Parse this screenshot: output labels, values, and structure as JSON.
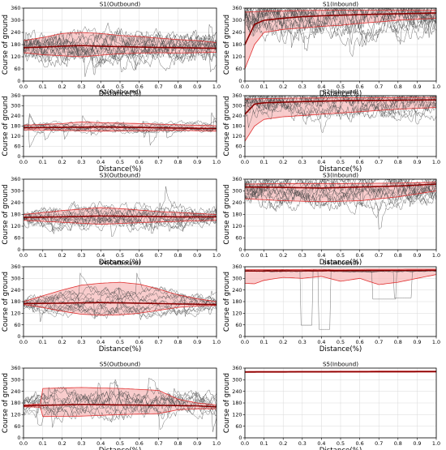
{
  "figure": {
    "ylabel": "Course of ground",
    "xlabel": "Distance(%)",
    "colors": {
      "trajectory": "#444444",
      "median": "#8b0000",
      "band_fill": "#f6b8b8",
      "band_edge": "#e03030",
      "grid": "#d9d9d9"
    }
  },
  "chart_data": [
    {
      "id": "s1-out",
      "type": "line",
      "title": "S1(Outbound)",
      "xlim": [
        0,
        1
      ],
      "ylim": [
        0,
        360
      ],
      "xticks": [
        "0.0",
        "0.1",
        "0.2",
        "0.3",
        "0.4",
        "0.5",
        "0.6",
        "0.7",
        "0.8",
        "0.9",
        "1.0"
      ],
      "yticks": [
        "0",
        "60",
        "120",
        "180",
        "240",
        "300",
        "360"
      ],
      "median": [
        [
          0,
          165
        ],
        [
          0.1,
          168
        ],
        [
          0.2,
          172
        ],
        [
          0.3,
          175
        ],
        [
          0.4,
          172
        ],
        [
          0.5,
          170
        ],
        [
          0.6,
          168
        ],
        [
          0.7,
          166
        ],
        [
          0.8,
          165
        ],
        [
          0.9,
          163
        ],
        [
          1.0,
          162
        ]
      ],
      "band_upper": [
        [
          0,
          200
        ],
        [
          0.1,
          215
        ],
        [
          0.2,
          235
        ],
        [
          0.3,
          240
        ],
        [
          0.4,
          235
        ],
        [
          0.5,
          225
        ],
        [
          0.6,
          220
        ],
        [
          0.7,
          212
        ],
        [
          0.8,
          205
        ],
        [
          0.9,
          200
        ],
        [
          1.0,
          190
        ]
      ],
      "band_lower": [
        [
          0,
          140
        ],
        [
          0.1,
          130
        ],
        [
          0.2,
          125
        ],
        [
          0.3,
          120
        ],
        [
          0.4,
          128
        ],
        [
          0.5,
          135
        ],
        [
          0.6,
          138
        ],
        [
          0.7,
          140
        ],
        [
          0.8,
          138
        ],
        [
          0.9,
          140
        ],
        [
          1.0,
          142
        ]
      ],
      "traj": {
        "n": 14,
        "base": 165,
        "spread": 140,
        "noise": 55,
        "seed": 11
      }
    },
    {
      "id": "s1-in",
      "type": "line",
      "title": "S1(Inbound)",
      "xlim": [
        0,
        1
      ],
      "ylim": [
        0,
        360
      ],
      "xticks": [
        "0.0",
        "0.1",
        "0.2",
        "0.3",
        "0.4",
        "0.5",
        "0.6",
        "0.7",
        "0.8",
        "0.9",
        "1.0"
      ],
      "yticks": [
        "0",
        "60",
        "120",
        "180",
        "240",
        "300",
        "360"
      ],
      "median": [
        [
          0,
          180
        ],
        [
          0.05,
          280
        ],
        [
          0.1,
          300
        ],
        [
          0.2,
          310
        ],
        [
          0.3,
          318
        ],
        [
          0.4,
          322
        ],
        [
          0.5,
          325
        ],
        [
          0.6,
          328
        ],
        [
          0.7,
          330
        ],
        [
          0.8,
          332
        ],
        [
          0.9,
          334
        ],
        [
          1.0,
          336
        ]
      ],
      "band_upper": [
        [
          0,
          340
        ],
        [
          0.1,
          345
        ],
        [
          0.3,
          348
        ],
        [
          0.5,
          350
        ],
        [
          0.7,
          350
        ],
        [
          1.0,
          350
        ]
      ],
      "band_lower": [
        [
          0,
          60
        ],
        [
          0.05,
          180
        ],
        [
          0.1,
          240
        ],
        [
          0.2,
          255
        ],
        [
          0.3,
          262
        ],
        [
          0.4,
          270
        ],
        [
          0.5,
          275
        ],
        [
          0.6,
          285
        ],
        [
          0.7,
          292
        ],
        [
          0.8,
          300
        ],
        [
          0.9,
          305
        ],
        [
          1.0,
          310
        ]
      ],
      "traj": {
        "n": 16,
        "base": 320,
        "spread": 200,
        "noise": 70,
        "seed": 23
      }
    },
    {
      "id": "s2-out",
      "type": "line",
      "title": "S2(Outbound)",
      "xlim": [
        0,
        1
      ],
      "ylim": [
        0,
        360
      ],
      "xticks": [
        "0.0",
        "0.1",
        "0.2",
        "0.3",
        "0.4",
        "0.5",
        "0.6",
        "0.7",
        "0.8",
        "0.9",
        "1.0"
      ],
      "yticks": [
        "0",
        "60",
        "120",
        "180",
        "240",
        "300",
        "360"
      ],
      "median": [
        [
          0,
          170
        ],
        [
          0.2,
          172
        ],
        [
          0.4,
          175
        ],
        [
          0.6,
          172
        ],
        [
          0.8,
          168
        ],
        [
          1.0,
          165
        ]
      ],
      "band_upper": [
        [
          0,
          185
        ],
        [
          0.2,
          195
        ],
        [
          0.3,
          205
        ],
        [
          0.4,
          200
        ],
        [
          0.6,
          195
        ],
        [
          0.8,
          188
        ],
        [
          1.0,
          182
        ]
      ],
      "band_lower": [
        [
          0,
          158
        ],
        [
          0.2,
          155
        ],
        [
          0.4,
          150
        ],
        [
          0.6,
          152
        ],
        [
          0.8,
          155
        ],
        [
          1.0,
          150
        ]
      ],
      "traj": {
        "n": 10,
        "base": 170,
        "spread": 40,
        "noise": 22,
        "seed": 37
      }
    },
    {
      "id": "s2-in",
      "type": "line",
      "title": "S2(Inbound)",
      "xlim": [
        0,
        1
      ],
      "ylim": [
        0,
        360
      ],
      "xticks": [
        "0.0",
        "0.1",
        "0.2",
        "0.3",
        "0.4",
        "0.5",
        "0.6",
        "0.7",
        "0.8",
        "0.9",
        "1.0"
      ],
      "yticks": [
        "0",
        "60",
        "120",
        "180",
        "240",
        "300",
        "360"
      ],
      "median": [
        [
          0,
          250
        ],
        [
          0.05,
          310
        ],
        [
          0.1,
          318
        ],
        [
          0.3,
          325
        ],
        [
          0.5,
          330
        ],
        [
          0.7,
          332
        ],
        [
          1.0,
          335
        ]
      ],
      "band_upper": [
        [
          0,
          340
        ],
        [
          0.2,
          345
        ],
        [
          0.5,
          348
        ],
        [
          1.0,
          350
        ]
      ],
      "band_lower": [
        [
          0,
          90
        ],
        [
          0.05,
          180
        ],
        [
          0.1,
          220
        ],
        [
          0.2,
          235
        ],
        [
          0.4,
          250
        ],
        [
          0.6,
          265
        ],
        [
          0.8,
          280
        ],
        [
          1.0,
          290
        ]
      ],
      "traj": {
        "n": 14,
        "base": 320,
        "spread": 190,
        "noise": 60,
        "seed": 41
      }
    },
    {
      "id": "s3-out",
      "type": "line",
      "title": "S3(Outbound)",
      "xlim": [
        0,
        1
      ],
      "ylim": [
        0,
        360
      ],
      "xticks": [
        "0.0",
        "0.1",
        "0.2",
        "0.3",
        "0.4",
        "0.5",
        "0.6",
        "0.7",
        "0.8",
        "0.9",
        "1.0"
      ],
      "yticks": [
        "0",
        "60",
        "120",
        "180",
        "240",
        "300",
        "360"
      ],
      "median": [
        [
          0,
          165
        ],
        [
          0.2,
          168
        ],
        [
          0.4,
          172
        ],
        [
          0.6,
          170
        ],
        [
          0.8,
          168
        ],
        [
          1.0,
          168
        ]
      ],
      "band_upper": [
        [
          0,
          180
        ],
        [
          0.2,
          200
        ],
        [
          0.4,
          215
        ],
        [
          0.5,
          210
        ],
        [
          0.7,
          195
        ],
        [
          0.9,
          185
        ],
        [
          1.0,
          180
        ]
      ],
      "band_lower": [
        [
          0,
          150
        ],
        [
          0.2,
          140
        ],
        [
          0.4,
          130
        ],
        [
          0.6,
          138
        ],
        [
          0.8,
          145
        ],
        [
          1.0,
          150
        ]
      ],
      "traj": {
        "n": 12,
        "base": 168,
        "spread": 90,
        "noise": 40,
        "seed": 53
      }
    },
    {
      "id": "s3-in",
      "type": "line",
      "title": "S3(Inbound)",
      "xlim": [
        0,
        1
      ],
      "ylim": [
        0,
        360
      ],
      "xticks": [
        "0.0",
        "0.1",
        "0.2",
        "0.3",
        "0.4",
        "0.5",
        "0.6",
        "0.7",
        "0.8",
        "0.9",
        "1.0"
      ],
      "yticks": [
        "0",
        "60",
        "120",
        "180",
        "240",
        "300",
        "360"
      ],
      "median": [
        [
          0,
          320
        ],
        [
          0.2,
          318
        ],
        [
          0.4,
          315
        ],
        [
          0.6,
          320
        ],
        [
          0.8,
          325
        ],
        [
          1.0,
          335
        ]
      ],
      "band_upper": [
        [
          0,
          335
        ],
        [
          0.2,
          338
        ],
        [
          0.5,
          338
        ],
        [
          0.8,
          340
        ],
        [
          1.0,
          345
        ]
      ],
      "band_lower": [
        [
          0,
          260
        ],
        [
          0.2,
          250
        ],
        [
          0.4,
          245
        ],
        [
          0.6,
          250
        ],
        [
          0.8,
          270
        ],
        [
          1.0,
          300
        ]
      ],
      "traj": {
        "n": 14,
        "base": 310,
        "spread": 170,
        "noise": 55,
        "seed": 67
      }
    },
    {
      "id": "s4-out",
      "type": "line",
      "title": "S4(Outbound)",
      "xlim": [
        0,
        1
      ],
      "ylim": [
        0,
        360
      ],
      "xticks": [
        "0.0",
        "0.1",
        "0.2",
        "0.3",
        "0.4",
        "0.5",
        "0.6",
        "0.7",
        "0.8",
        "0.9",
        "1.0"
      ],
      "yticks": [
        "0",
        "60",
        "120",
        "180",
        "240",
        "300",
        "360"
      ],
      "median": [
        [
          0,
          170
        ],
        [
          0.2,
          172
        ],
        [
          0.4,
          175
        ],
        [
          0.6,
          172
        ],
        [
          0.8,
          168
        ],
        [
          1.0,
          165
        ]
      ],
      "band_upper": [
        [
          0,
          180
        ],
        [
          0.1,
          210
        ],
        [
          0.2,
          240
        ],
        [
          0.3,
          265
        ],
        [
          0.4,
          275
        ],
        [
          0.5,
          280
        ],
        [
          0.6,
          270
        ],
        [
          0.7,
          245
        ],
        [
          0.8,
          215
        ],
        [
          0.9,
          195
        ],
        [
          1.0,
          180
        ]
      ],
      "band_lower": [
        [
          0,
          165
        ],
        [
          0.1,
          150
        ],
        [
          0.2,
          130
        ],
        [
          0.3,
          115
        ],
        [
          0.4,
          110
        ],
        [
          0.5,
          112
        ],
        [
          0.6,
          120
        ],
        [
          0.7,
          135
        ],
        [
          0.8,
          150
        ],
        [
          0.9,
          158
        ],
        [
          1.0,
          160
        ]
      ],
      "traj": {
        "n": 12,
        "base": 172,
        "spread": 160,
        "noise": 30,
        "seed": 79
      }
    },
    {
      "id": "s4-in",
      "type": "line",
      "title": "S4(Inbound)",
      "xlim": [
        0,
        1
      ],
      "ylim": [
        0,
        360
      ],
      "xticks": [
        "0.0",
        "0.1",
        "0.2",
        "0.3",
        "0.4",
        "0.5",
        "0.6",
        "0.7",
        "0.8",
        "0.9",
        "1.0"
      ],
      "yticks": [
        "0",
        "60",
        "120",
        "180",
        "240",
        "300",
        "360"
      ],
      "median": [
        [
          0,
          338
        ],
        [
          0.5,
          340
        ],
        [
          1.0,
          342
        ]
      ],
      "band_upper": [
        [
          0,
          345
        ],
        [
          0.5,
          347
        ],
        [
          1.0,
          348
        ]
      ],
      "band_lower": [
        [
          0,
          275
        ],
        [
          0.05,
          272
        ],
        [
          0.1,
          290
        ],
        [
          0.2,
          305
        ],
        [
          0.3,
          300
        ],
        [
          0.4,
          310
        ],
        [
          0.5,
          285
        ],
        [
          0.6,
          300
        ],
        [
          0.7,
          268
        ],
        [
          0.8,
          280
        ],
        [
          0.9,
          300
        ],
        [
          1.0,
          320
        ]
      ],
      "traj": {
        "n": 6,
        "base": 340,
        "spread": 10,
        "noise": 4,
        "seed": 83,
        "dips": true
      }
    },
    {
      "id": "s5-out",
      "type": "line",
      "title": "S5(Outbound)",
      "xlim": [
        0,
        1
      ],
      "ylim": [
        0,
        360
      ],
      "xticks": [
        "0.0",
        "0.1",
        "0.2",
        "0.3",
        "0.4",
        "0.5",
        "0.6",
        "0.7",
        "0.8",
        "0.9",
        "1.0"
      ],
      "yticks": [
        "0",
        "60",
        "120",
        "180",
        "240",
        "300",
        "360"
      ],
      "median": [
        [
          0,
          165
        ],
        [
          0.1,
          168
        ],
        [
          0.3,
          172
        ],
        [
          0.5,
          170
        ],
        [
          0.7,
          168
        ],
        [
          0.9,
          165
        ],
        [
          1.0,
          160
        ]
      ],
      "band_upper": [
        [
          0,
          170
        ],
        [
          0.09,
          175
        ],
        [
          0.1,
          255
        ],
        [
          0.3,
          260
        ],
        [
          0.5,
          255
        ],
        [
          0.7,
          245
        ],
        [
          0.8,
          200
        ],
        [
          0.9,
          180
        ],
        [
          1.0,
          170
        ]
      ],
      "band_lower": [
        [
          0,
          160
        ],
        [
          0.09,
          158
        ],
        [
          0.1,
          110
        ],
        [
          0.3,
          112
        ],
        [
          0.5,
          120
        ],
        [
          0.7,
          125
        ],
        [
          0.8,
          145
        ],
        [
          0.9,
          150
        ],
        [
          1.0,
          150
        ]
      ],
      "traj": {
        "n": 10,
        "base": 168,
        "spread": 150,
        "noise": 45,
        "seed": 97
      }
    },
    {
      "id": "s5-in",
      "type": "line",
      "title": "S5(Inbound)",
      "xlim": [
        0,
        1
      ],
      "ylim": [
        0,
        360
      ],
      "xticks": [
        "0.0",
        "0.1",
        "0.2",
        "0.3",
        "0.4",
        "0.5",
        "0.6",
        "0.7",
        "0.8",
        "0.9",
        "1.0"
      ],
      "yticks": [
        "0",
        "60",
        "120",
        "180",
        "240",
        "300",
        "360"
      ],
      "median": [
        [
          0,
          340
        ],
        [
          0.5,
          341
        ],
        [
          1.0,
          342
        ]
      ],
      "band_upper": [
        [
          0,
          343
        ],
        [
          1.0,
          345
        ]
      ],
      "band_lower": [
        [
          0,
          338
        ],
        [
          1.0,
          340
        ]
      ],
      "traj": {
        "n": 3,
        "base": 341,
        "spread": 2,
        "noise": 1,
        "seed": 101
      }
    }
  ]
}
